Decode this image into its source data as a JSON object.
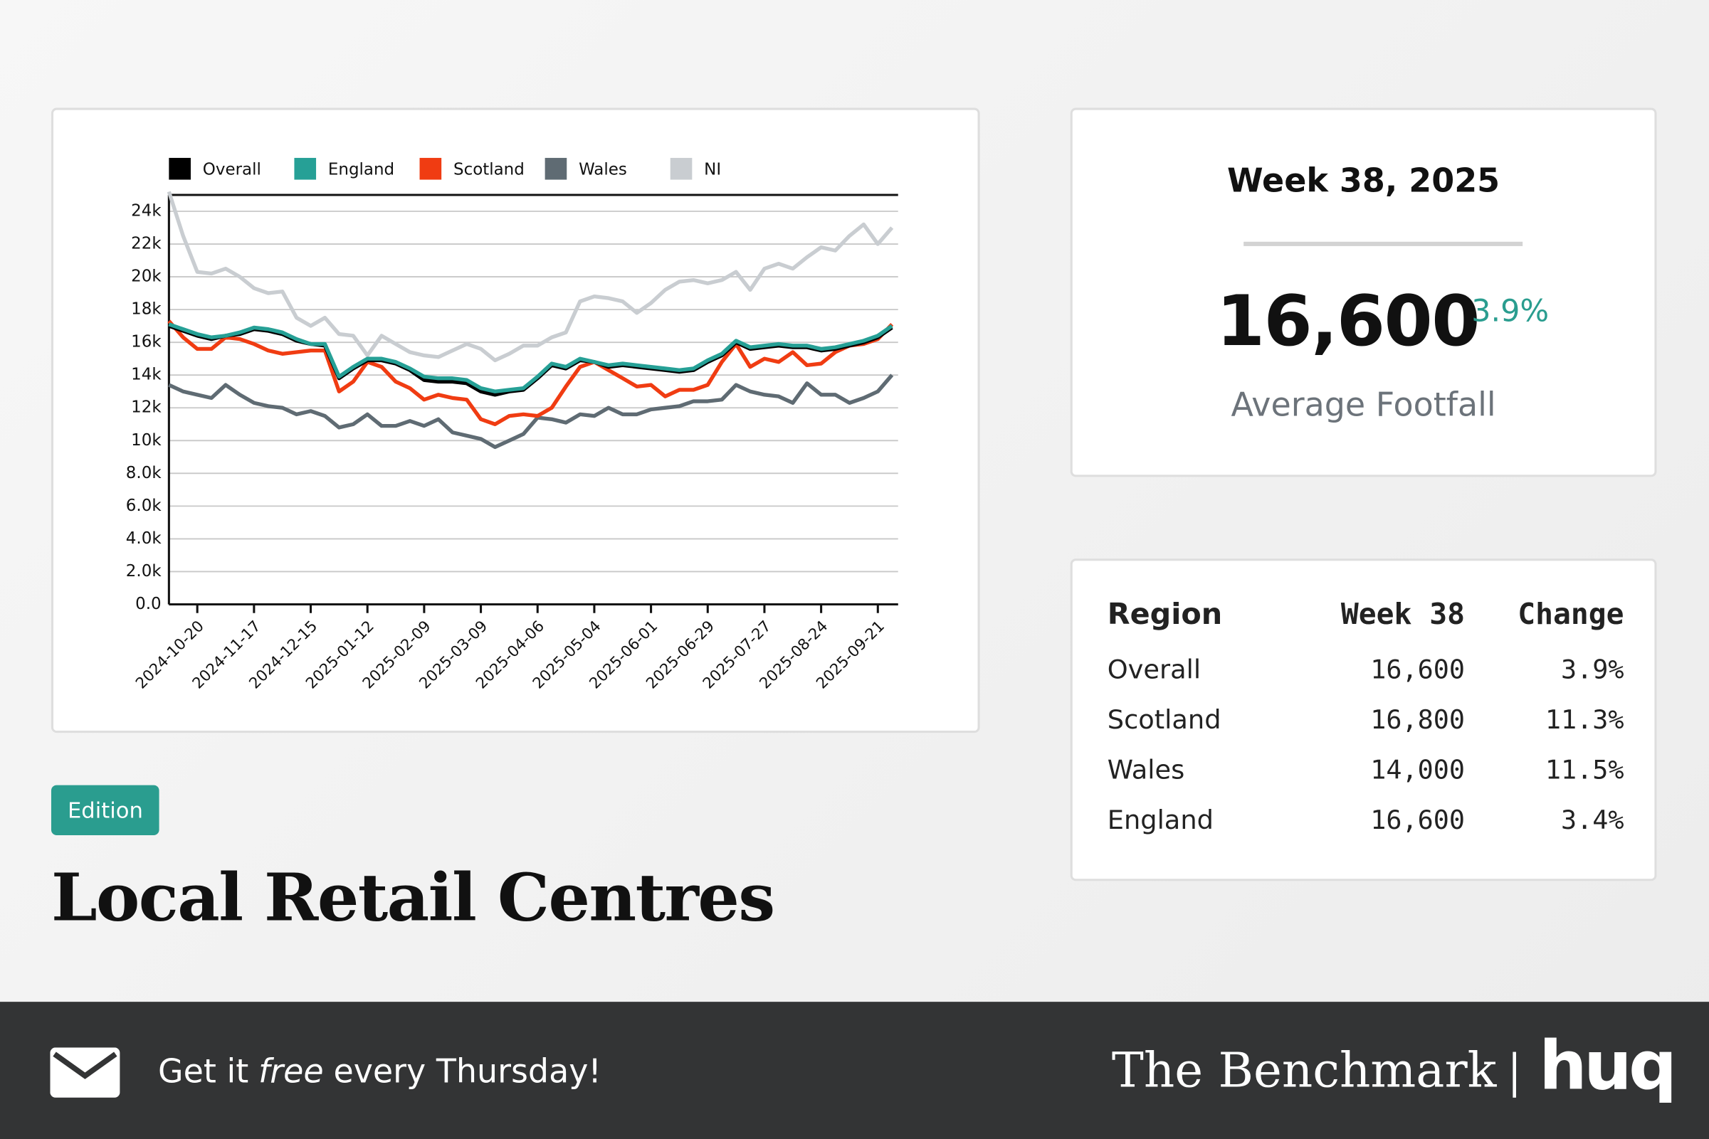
{
  "chart_data": {
    "type": "line",
    "x": [
      "2024-10-06",
      "2024-10-13",
      "2024-10-20",
      "2024-10-27",
      "2024-11-03",
      "2024-11-10",
      "2024-11-17",
      "2024-11-24",
      "2024-12-01",
      "2024-12-08",
      "2024-12-15",
      "2024-12-22",
      "2024-12-29",
      "2025-01-05",
      "2025-01-12",
      "2025-01-19",
      "2025-01-26",
      "2025-02-02",
      "2025-02-09",
      "2025-02-16",
      "2025-02-23",
      "2025-03-02",
      "2025-03-09",
      "2025-03-16",
      "2025-03-23",
      "2025-03-30",
      "2025-04-06",
      "2025-04-13",
      "2025-04-20",
      "2025-04-27",
      "2025-05-04",
      "2025-05-11",
      "2025-05-18",
      "2025-05-25",
      "2025-06-01",
      "2025-06-08",
      "2025-06-15",
      "2025-06-22",
      "2025-06-29",
      "2025-07-06",
      "2025-07-13",
      "2025-07-20",
      "2025-07-27",
      "2025-08-03",
      "2025-08-10",
      "2025-08-17",
      "2025-08-24",
      "2025-08-31",
      "2025-09-07",
      "2025-09-14",
      "2025-09-21",
      "2025-09-28"
    ],
    "xlim": [
      "2024-10-06",
      "2025-10-01"
    ],
    "xticks": [
      "2024-10-20",
      "2024-11-17",
      "2024-12-15",
      "2025-01-12",
      "2025-02-09",
      "2025-03-09",
      "2025-04-06",
      "2025-05-04",
      "2025-06-01",
      "2025-06-29",
      "2025-07-27",
      "2025-08-24",
      "2025-09-21"
    ],
    "ylim": [
      0,
      25000
    ],
    "yticks": [
      {
        "value": 0,
        "label": "0.0"
      },
      {
        "value": 2000,
        "label": "2.0k"
      },
      {
        "value": 4000,
        "label": "4.0k"
      },
      {
        "value": 6000,
        "label": "6.0k"
      },
      {
        "value": 8000,
        "label": "8.0k"
      },
      {
        "value": 10000,
        "label": "10k"
      },
      {
        "value": 12000,
        "label": "12k"
      },
      {
        "value": 14000,
        "label": "14k"
      },
      {
        "value": 16000,
        "label": "16k"
      },
      {
        "value": 18000,
        "label": "18k"
      },
      {
        "value": 20000,
        "label": "20k"
      },
      {
        "value": 22000,
        "label": "22k"
      },
      {
        "value": 24000,
        "label": "24k"
      }
    ],
    "grid": true,
    "legend": "top",
    "series": [
      {
        "name": "NI",
        "color": "#c9cdd1",
        "values": [
          25200,
          22500,
          20300,
          20200,
          20500,
          20000,
          19300,
          19000,
          19100,
          17500,
          17000,
          17500,
          16500,
          16400,
          15200,
          16400,
          15900,
          15400,
          15200,
          15100,
          15500,
          15900,
          15600,
          14900,
          15300,
          15800,
          15800,
          16300,
          16600,
          18500,
          18800,
          18700,
          18500,
          17800,
          18400,
          19200,
          19700,
          19800,
          19600,
          19800,
          20300,
          19200,
          20500,
          20800,
          20500,
          21200,
          21800,
          21600,
          22500,
          23200,
          22000,
          23000
        ]
      },
      {
        "name": "Wales",
        "color": "#5f6b73",
        "values": [
          13400,
          13000,
          12800,
          12600,
          13400,
          12800,
          12300,
          12100,
          12000,
          11600,
          11800,
          11500,
          10800,
          11000,
          11600,
          10900,
          10900,
          11200,
          10900,
          11300,
          10500,
          10300,
          10100,
          9600,
          10000,
          10400,
          11400,
          11300,
          11100,
          11600,
          11500,
          12000,
          11600,
          11600,
          11900,
          12000,
          12100,
          12400,
          12400,
          12500,
          13400,
          13000,
          12800,
          12700,
          12300,
          13500,
          12800,
          12800,
          12300,
          12600,
          13000,
          14000
        ]
      },
      {
        "name": "Scotland",
        "color": "#f03c12",
        "values": [
          17300,
          16300,
          15600,
          15600,
          16300,
          16200,
          15900,
          15500,
          15300,
          15400,
          15500,
          15500,
          13000,
          13600,
          14800,
          14500,
          13600,
          13200,
          12500,
          12800,
          12600,
          12500,
          11300,
          11000,
          11500,
          11600,
          11500,
          12000,
          13300,
          14500,
          14800,
          14300,
          13800,
          13300,
          13400,
          12700,
          13100,
          13100,
          13400,
          14800,
          15900,
          14500,
          15000,
          14800,
          15400,
          14600,
          14700,
          15400,
          15800,
          15900,
          16200,
          17100
        ]
      },
      {
        "name": "Overall",
        "color": "#000000",
        "values": [
          17000,
          16700,
          16400,
          16200,
          16400,
          16500,
          16800,
          16700,
          16500,
          16100,
          15900,
          15800,
          13800,
          14400,
          14900,
          14900,
          14700,
          14300,
          13700,
          13600,
          13600,
          13500,
          13000,
          12800,
          13000,
          13100,
          13800,
          14600,
          14400,
          14900,
          14800,
          14500,
          14600,
          14500,
          14400,
          14300,
          14200,
          14300,
          14800,
          15200,
          16000,
          15600,
          15700,
          15800,
          15700,
          15700,
          15500,
          15600,
          15800,
          16000,
          16300,
          16900
        ]
      },
      {
        "name": "England",
        "color": "#26a096",
        "values": [
          17100,
          16800,
          16500,
          16300,
          16400,
          16600,
          16900,
          16800,
          16600,
          16200,
          15900,
          15900,
          13900,
          14500,
          15000,
          15000,
          14800,
          14400,
          13900,
          13800,
          13800,
          13700,
          13200,
          13000,
          13100,
          13200,
          13900,
          14700,
          14500,
          15000,
          14800,
          14600,
          14700,
          14600,
          14500,
          14400,
          14300,
          14400,
          14900,
          15300,
          16100,
          15700,
          15800,
          15900,
          15800,
          15800,
          15600,
          15700,
          15900,
          16100,
          16400,
          17000
        ]
      }
    ]
  },
  "badge": "Edition",
  "title": "Local Retail Centres",
  "summary": {
    "heading": "Week 38, 2025",
    "value": "16,600",
    "change": "3.9%",
    "label": "Average Footfall"
  },
  "table": {
    "columns": [
      "Region",
      "Week 38",
      "Change"
    ],
    "rows": [
      [
        "Overall",
        "16,600",
        "3.9%"
      ],
      [
        "Scotland",
        "16,800",
        "11.3%"
      ],
      [
        "Wales",
        "14,000",
        "11.5%"
      ],
      [
        "England",
        "16,600",
        "3.4%"
      ]
    ]
  },
  "footer": {
    "cta": [
      "Get it",
      "free",
      "every Thursday!"
    ],
    "brand": "The Benchmark",
    "logo": "huq"
  }
}
